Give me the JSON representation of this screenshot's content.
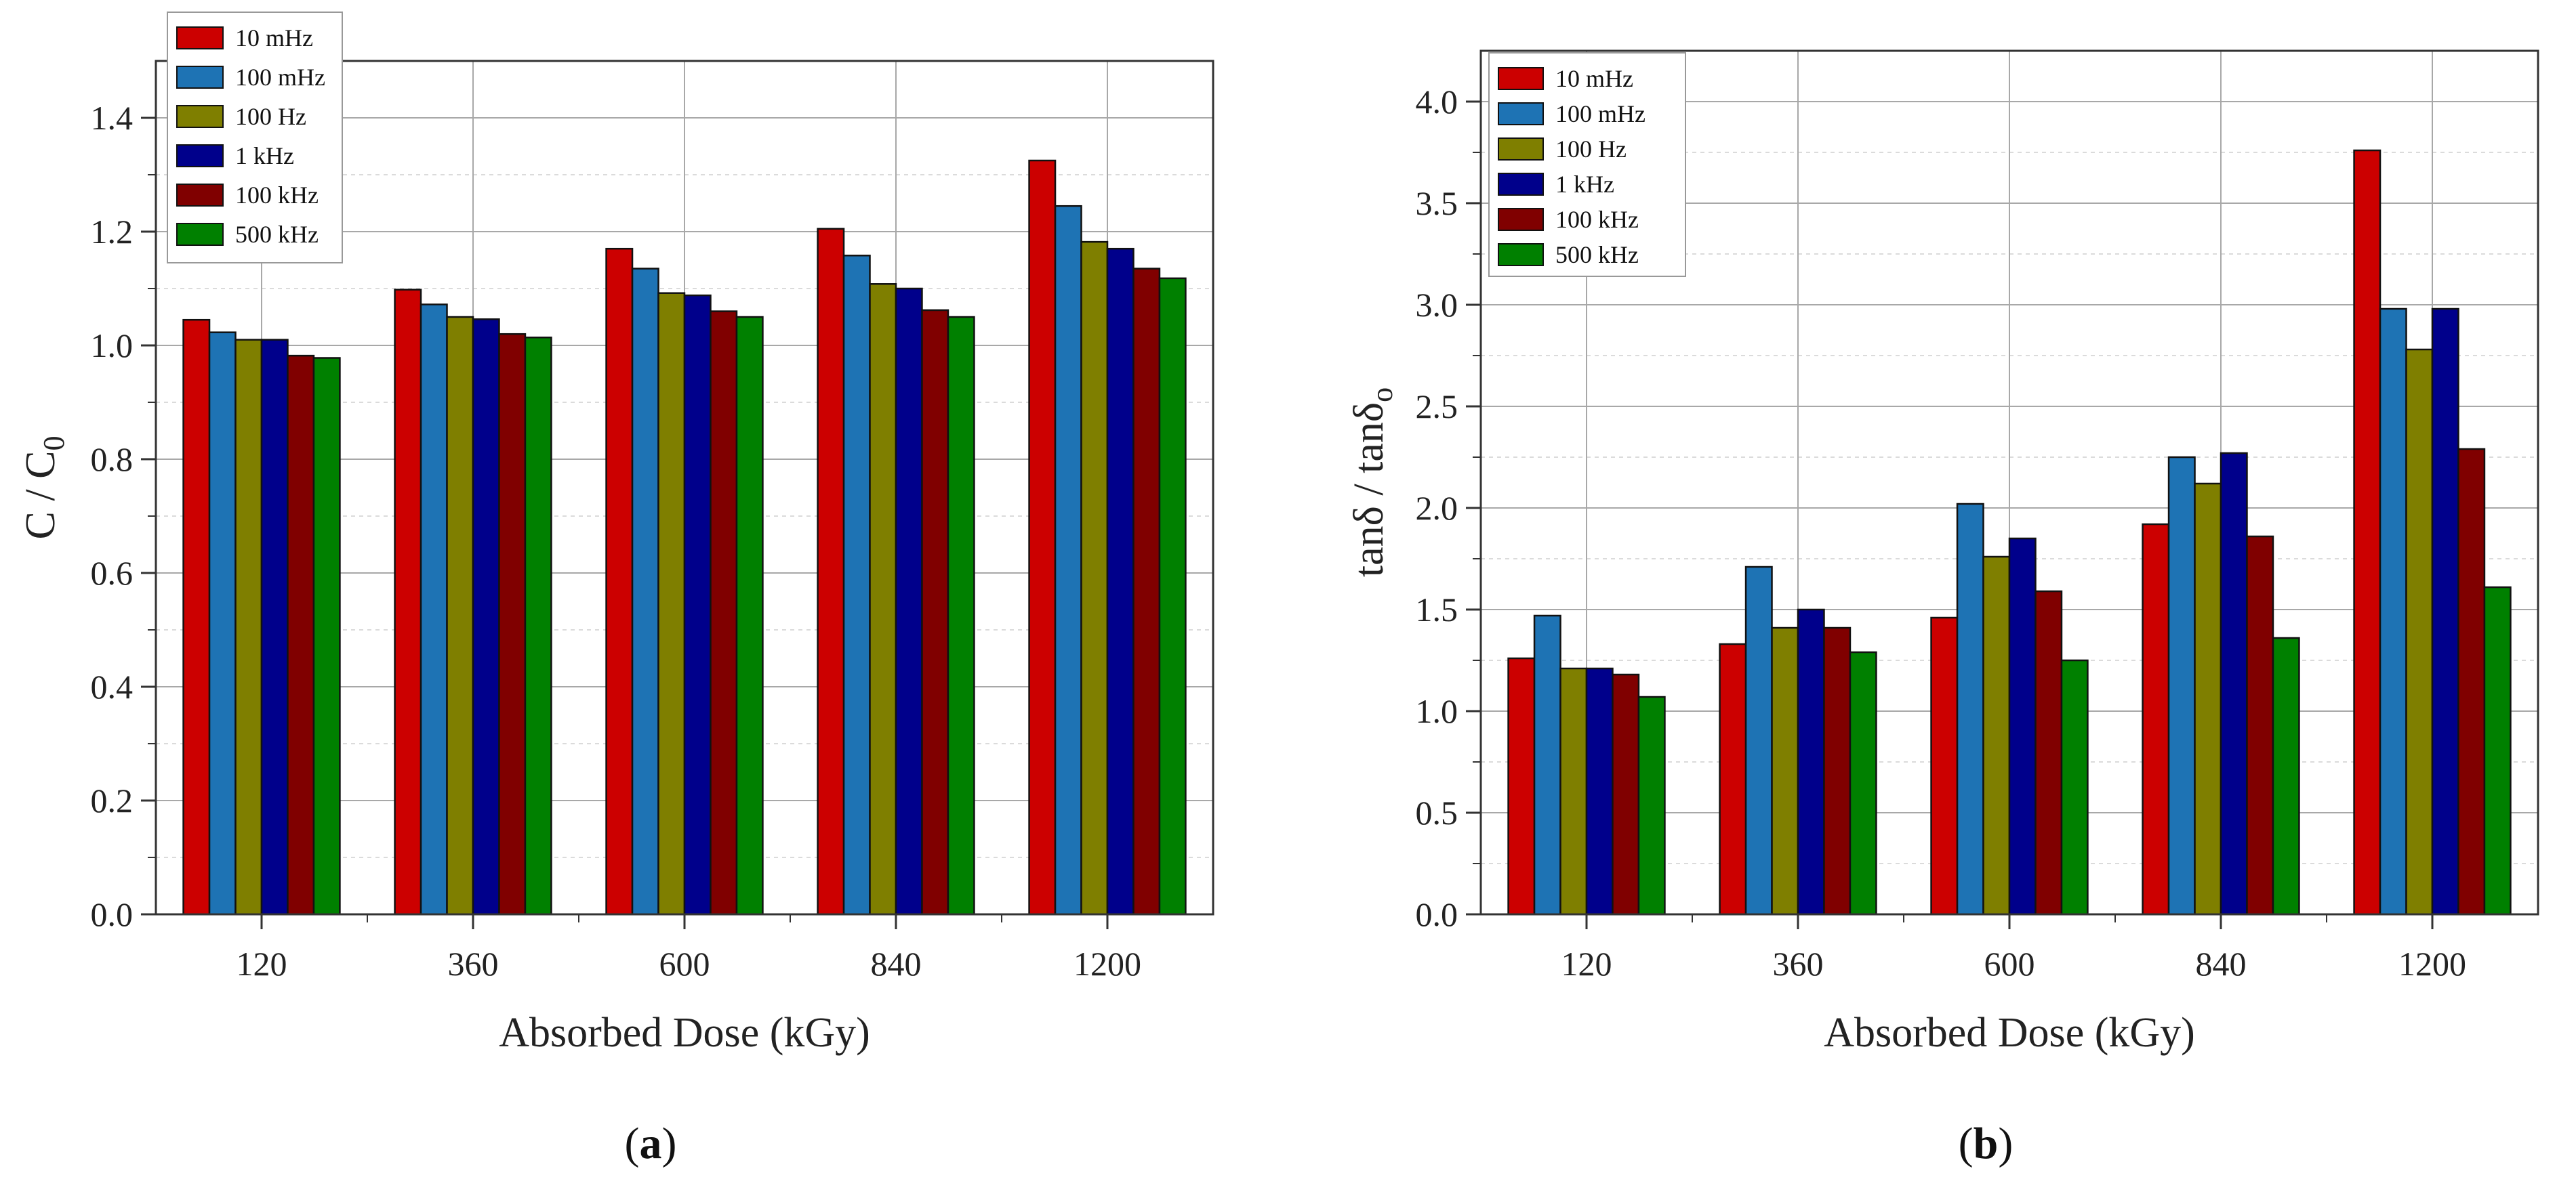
{
  "chart_data": [
    {
      "type": "bar",
      "panel_label": "a",
      "title": "",
      "xlabel": "Absorbed Dose (kGy)",
      "ylabel": {
        "main": "C / C",
        "sub": "0"
      },
      "ylim": [
        0,
        1.5
      ],
      "yticks": [
        "0.0",
        "0.2",
        "0.4",
        "0.6",
        "0.8",
        "1.0",
        "1.2",
        "1.4"
      ],
      "categories": [
        "120",
        "360",
        "600",
        "840",
        "1200"
      ],
      "legend_position": "top-left",
      "series": [
        {
          "name": "10 mHz",
          "color": "#cc0000",
          "values": [
            1.045,
            1.098,
            1.17,
            1.205,
            1.325
          ]
        },
        {
          "name": "100 mHz",
          "color": "#1e73b4",
          "values": [
            1.023,
            1.072,
            1.135,
            1.158,
            1.245
          ]
        },
        {
          "name": "100 Hz",
          "color": "#7f7f00",
          "values": [
            1.01,
            1.05,
            1.092,
            1.108,
            1.182
          ]
        },
        {
          "name": "1 kHz",
          "color": "#00008b",
          "values": [
            1.01,
            1.046,
            1.088,
            1.1,
            1.17
          ]
        },
        {
          "name": "100 kHz",
          "color": "#800000",
          "values": [
            0.982,
            1.02,
            1.06,
            1.062,
            1.135
          ]
        },
        {
          "name": "500 kHz",
          "color": "#008000",
          "values": [
            0.978,
            1.014,
            1.05,
            1.05,
            1.118
          ]
        }
      ]
    },
    {
      "type": "bar",
      "panel_label": "b",
      "title": "",
      "xlabel": "Absorbed Dose (kGy)",
      "ylabel": {
        "main": "tanδ / tanδ",
        "sub": "o"
      },
      "ylim": [
        0,
        4.25
      ],
      "yticks": [
        "0.0",
        "0.5",
        "1.0",
        "1.5",
        "2.0",
        "2.5",
        "3.0",
        "3.5",
        "4.0"
      ],
      "categories": [
        "120",
        "360",
        "600",
        "840",
        "1200"
      ],
      "legend_position": "top-left",
      "series": [
        {
          "name": "10 mHz",
          "color": "#cc0000",
          "values": [
            1.26,
            1.33,
            1.46,
            1.92,
            3.76
          ]
        },
        {
          "name": "100 mHz",
          "color": "#1e73b4",
          "values": [
            1.47,
            1.71,
            2.02,
            2.25,
            2.98
          ]
        },
        {
          "name": "100 Hz",
          "color": "#7f7f00",
          "values": [
            1.21,
            1.41,
            1.76,
            2.12,
            2.78
          ]
        },
        {
          "name": "1 kHz",
          "color": "#00008b",
          "values": [
            1.21,
            1.5,
            1.85,
            2.27,
            2.98
          ]
        },
        {
          "name": "100 kHz",
          "color": "#800000",
          "values": [
            1.18,
            1.41,
            1.59,
            1.86,
            2.29
          ]
        },
        {
          "name": "500 kHz",
          "color": "#008000",
          "values": [
            1.07,
            1.29,
            1.25,
            1.36,
            1.61
          ]
        }
      ]
    }
  ]
}
